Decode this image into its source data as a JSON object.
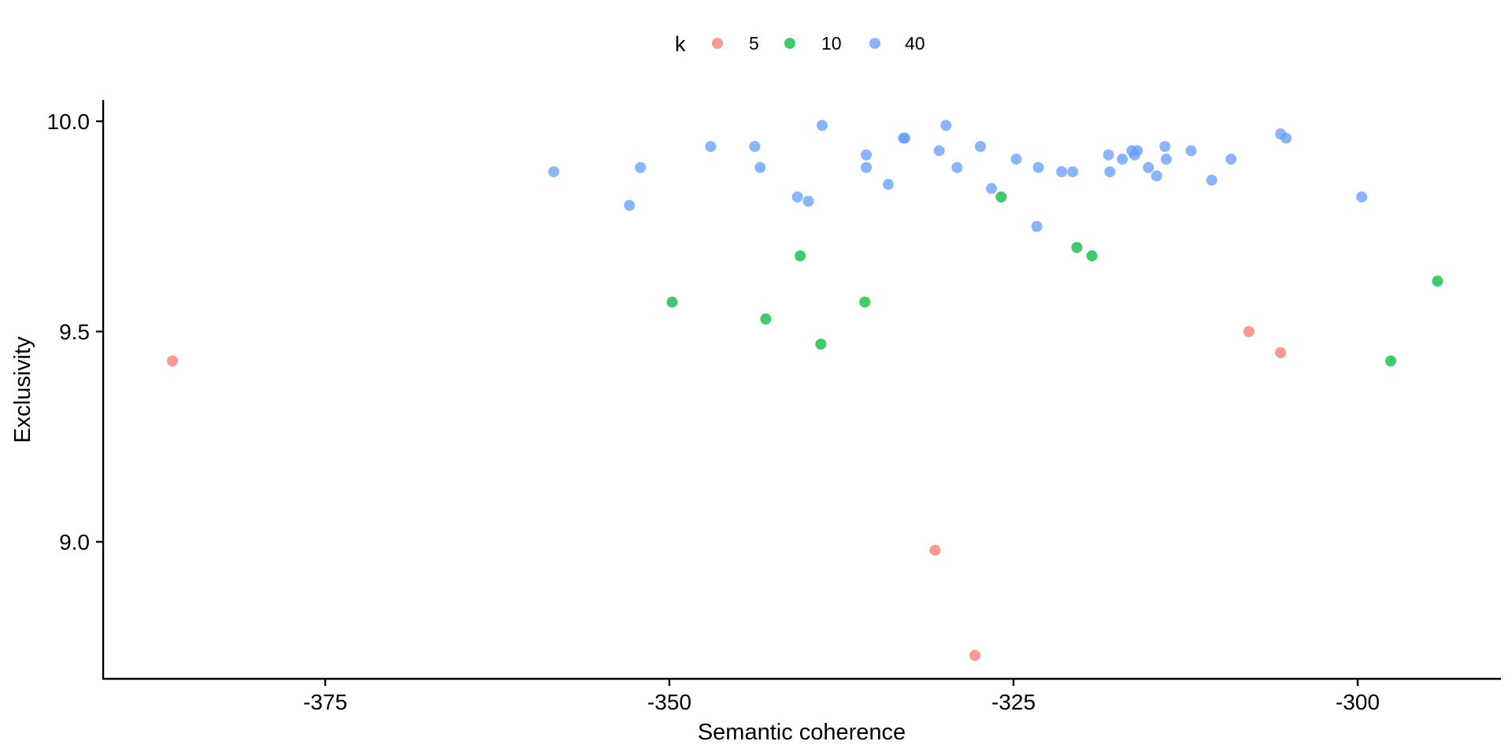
{
  "chart_data": {
    "type": "scatter",
    "title": "",
    "xlabel": "Semantic coherence",
    "ylabel": "Exclusivity",
    "xlim": [
      -391.4,
      -289.0
    ],
    "ylim": [
      8.67,
      10.05
    ],
    "xticks": [
      -375,
      -350,
      -325,
      -300
    ],
    "xtick_labels": [
      "-375",
      "-350",
      "-325",
      "-300"
    ],
    "yticks": [
      9.0,
      9.5,
      10.0
    ],
    "ytick_labels": [
      "9.0",
      "9.5",
      "10.0"
    ],
    "grid": false,
    "legend": {
      "title": "k",
      "position": "top"
    },
    "series": [
      {
        "name": "5",
        "color": "#F8766D",
        "points": [
          [
            -386.1,
            9.43
          ],
          [
            -330.7,
            8.98
          ],
          [
            -327.8,
            8.73
          ],
          [
            -307.9,
            9.5
          ],
          [
            -305.6,
            9.45
          ]
        ]
      },
      {
        "name": "10",
        "color": "#00BA38",
        "points": [
          [
            -349.8,
            9.57
          ],
          [
            -343.0,
            9.53
          ],
          [
            -340.5,
            9.68
          ],
          [
            -339.0,
            9.47
          ],
          [
            -335.8,
            9.57
          ],
          [
            -325.9,
            9.82
          ],
          [
            -320.4,
            9.7
          ],
          [
            -319.3,
            9.68
          ],
          [
            -297.6,
            9.43
          ],
          [
            -294.2,
            9.62
          ]
        ]
      },
      {
        "name": "40",
        "color": "#619CFF",
        "points": [
          [
            -358.4,
            9.88
          ],
          [
            -352.9,
            9.8
          ],
          [
            -352.1,
            9.89
          ],
          [
            -347.0,
            9.94
          ],
          [
            -343.8,
            9.94
          ],
          [
            -343.4,
            9.89
          ],
          [
            -340.7,
            9.82
          ],
          [
            -339.9,
            9.81
          ],
          [
            -338.9,
            9.99
          ],
          [
            -335.7,
            9.92
          ],
          [
            -335.7,
            9.89
          ],
          [
            -334.1,
            9.85
          ],
          [
            -333.0,
            9.96
          ],
          [
            -332.9,
            9.96
          ],
          [
            -330.4,
            9.93
          ],
          [
            -329.9,
            9.99
          ],
          [
            -329.1,
            9.89
          ],
          [
            -327.4,
            9.94
          ],
          [
            -326.6,
            9.84
          ],
          [
            -324.8,
            9.91
          ],
          [
            -323.3,
            9.75
          ],
          [
            -323.2,
            9.89
          ],
          [
            -321.5,
            9.88
          ],
          [
            -320.7,
            9.88
          ],
          [
            -318.1,
            9.92
          ],
          [
            -318.0,
            9.88
          ],
          [
            -317.1,
            9.91
          ],
          [
            -316.4,
            9.93
          ],
          [
            -316.2,
            9.92
          ],
          [
            -316.0,
            9.93
          ],
          [
            -315.2,
            9.89
          ],
          [
            -314.6,
            9.87
          ],
          [
            -314.0,
            9.94
          ],
          [
            -313.9,
            9.91
          ],
          [
            -312.1,
            9.93
          ],
          [
            -310.6,
            9.86
          ],
          [
            -309.2,
            9.91
          ],
          [
            -305.6,
            9.97
          ],
          [
            -305.2,
            9.96
          ],
          [
            -299.7,
            9.82
          ]
        ]
      }
    ]
  }
}
